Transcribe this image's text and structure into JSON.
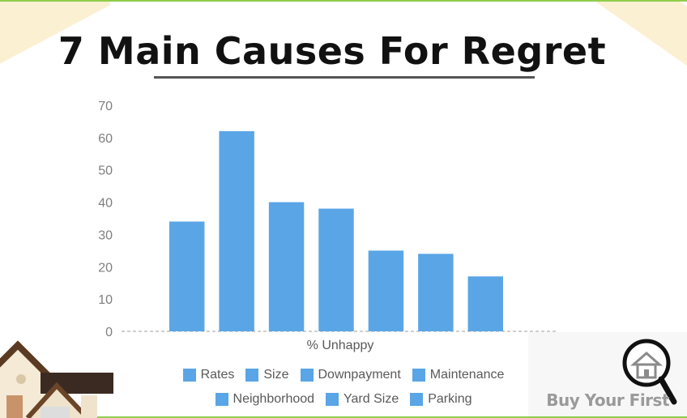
{
  "title": "7 Main Causes For Regret",
  "brand": {
    "name": "Buy Your First",
    "icon": "house-magnifier-icon"
  },
  "colors": {
    "bar": "#5aa5e6",
    "accent_line": "#8fce4a",
    "corner_decoration": "#fbf0d2"
  },
  "chart_data": {
    "type": "bar",
    "title": "7 Main Causes For Regret",
    "xlabel": "% Unhappy",
    "ylabel": "",
    "ylim": [
      0,
      70
    ],
    "yticks": [
      0,
      10,
      20,
      30,
      40,
      50,
      60,
      70
    ],
    "categories": [
      "% Unhappy"
    ],
    "series": [
      {
        "name": "Rates",
        "values": [
          34
        ]
      },
      {
        "name": "Size",
        "values": [
          62
        ]
      },
      {
        "name": "Downpayment",
        "values": [
          40
        ]
      },
      {
        "name": "Maintenance",
        "values": [
          38
        ]
      },
      {
        "name": "Neighborhood",
        "values": [
          25
        ]
      },
      {
        "name": "Yard Size",
        "values": [
          24
        ]
      },
      {
        "name": "Parking",
        "values": [
          17
        ]
      }
    ],
    "grid": false,
    "legend": "bottom"
  }
}
